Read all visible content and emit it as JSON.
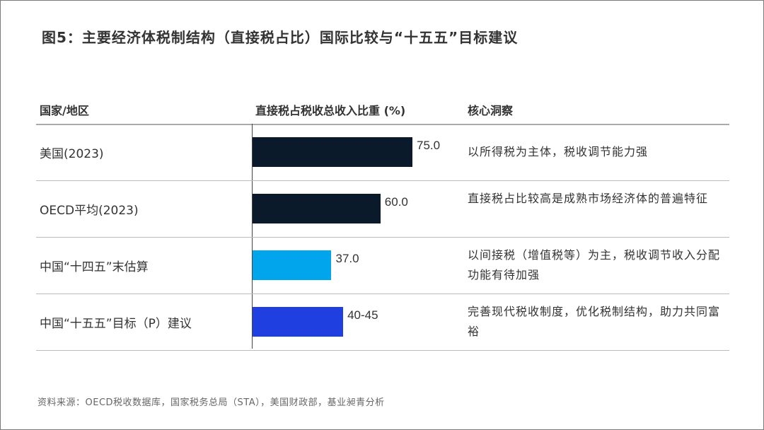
{
  "chart_data": {
    "type": "bar",
    "title": "图5：主要经济体税制结构（直接税占比）国际比较与“十五五”目标建议",
    "columns": [
      "国家/地区",
      "直接税占税收总收入比重 (%)",
      "核心洞察"
    ],
    "xlim": [
      0,
      100
    ],
    "rows": [
      {
        "category": "美国(2023)",
        "value": 75.0,
        "label": "75.0",
        "color": "#0b1a2b",
        "insight": "以所得税为主体，税收调节能力强"
      },
      {
        "category": "OECD平均(2023)",
        "value": 60.0,
        "label": "60.0",
        "color": "#0b1a2b",
        "insight": "直接税占比较高是成熟市场经济体的普遍特征"
      },
      {
        "category": "中国“十四五”末估算",
        "value": 37.0,
        "label": "37.0",
        "color": "#00a5ec",
        "insight": "以间接税（增值税等）为主，税收调节收入分配功能有待加强"
      },
      {
        "category": "中国“十五五”目标（P）建议",
        "value": 42.5,
        "label": "40-45",
        "color": "#1f3fe0",
        "insight": "完善现代税收制度，优化税制结构，助力共同富裕"
      }
    ]
  },
  "source": "资料来源：OECD税收数据库，国家税务总局（STA），美国财政部，基业昶青分析"
}
